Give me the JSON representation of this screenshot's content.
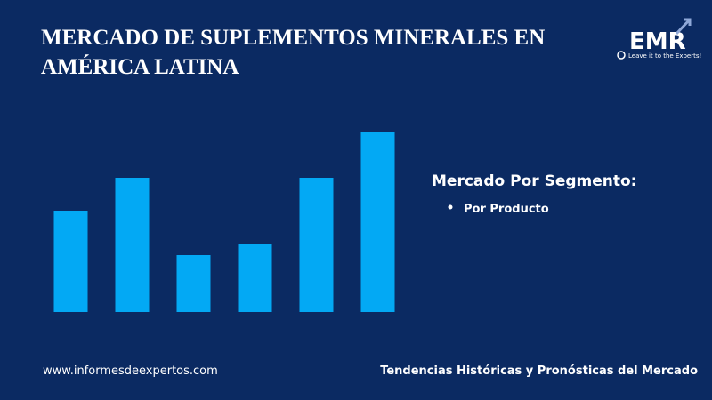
{
  "chart_data": {
    "type": "bar",
    "title": [
      "MERCADO DE SUPLEMENTOS MINERALES EN",
      "AMÉRICA LATINA"
    ],
    "categories": [
      null,
      null,
      null,
      null,
      null,
      null
    ],
    "values": [
      114,
      151,
      64,
      76,
      151,
      202
    ],
    "color": "#03a9f4",
    "ylim": [
      0,
      202
    ]
  },
  "logo": {
    "text": "EMR",
    "tagline": "Leave it to the Experts!"
  },
  "legend": {
    "heading": "Mercado Por Segmento:",
    "items": [
      "Por Producto"
    ]
  },
  "footer": {
    "left": "www.informesdeexpertos.com",
    "right": "Tendencias Históricas y Pronósticas del Mercado"
  }
}
